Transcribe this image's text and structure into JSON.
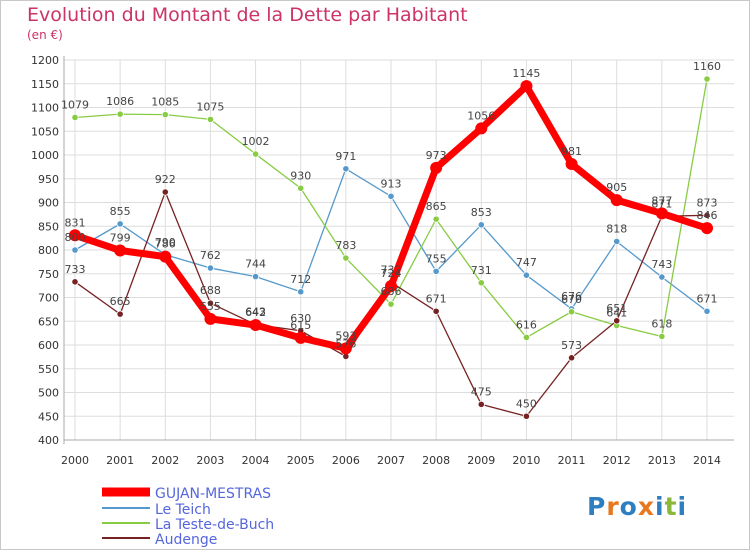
{
  "chart_data": {
    "type": "line",
    "title": "Evolution du Montant de la Dette par Habitant",
    "subtitle": "(en €)",
    "x": [
      "2000",
      "2001",
      "2002",
      "2003",
      "2004",
      "2005",
      "2006",
      "2007",
      "2008",
      "2009",
      "2010",
      "2011",
      "2012",
      "2013",
      "2014"
    ],
    "ylim": [
      400,
      1200
    ],
    "yticks": [
      400,
      450,
      500,
      550,
      600,
      650,
      700,
      750,
      800,
      850,
      900,
      950,
      1000,
      1050,
      1100,
      1150,
      1200
    ],
    "grid": true,
    "legend_position": "bottom-left",
    "series": [
      {
        "name": "GUJAN-MESTRAS",
        "color": "#ff0000",
        "values": [
          831,
          799,
          786,
          655,
          642,
          615,
          593,
          724,
          973,
          1056,
          1145,
          981,
          905,
          877,
          846
        ]
      },
      {
        "name": "Le Teich",
        "color": "#5599cc",
        "values": [
          800,
          855,
          790,
          762,
          744,
          712,
          971,
          913,
          755,
          853,
          747,
          676,
          818,
          743,
          671
        ]
      },
      {
        "name": "La Teste-de-Buch",
        "color": "#88cc44",
        "values": [
          1079,
          1086,
          1085,
          1075,
          1002,
          930,
          783,
          686,
          865,
          731,
          616,
          670,
          641,
          618,
          1160
        ]
      },
      {
        "name": "Audenge",
        "color": "#772222",
        "values": [
          733,
          665,
          922,
          688,
          643,
          630,
          576,
          732,
          671,
          475,
          450,
          573,
          651,
          871,
          873
        ]
      }
    ]
  },
  "logo": {
    "text": "Proxiti"
  }
}
